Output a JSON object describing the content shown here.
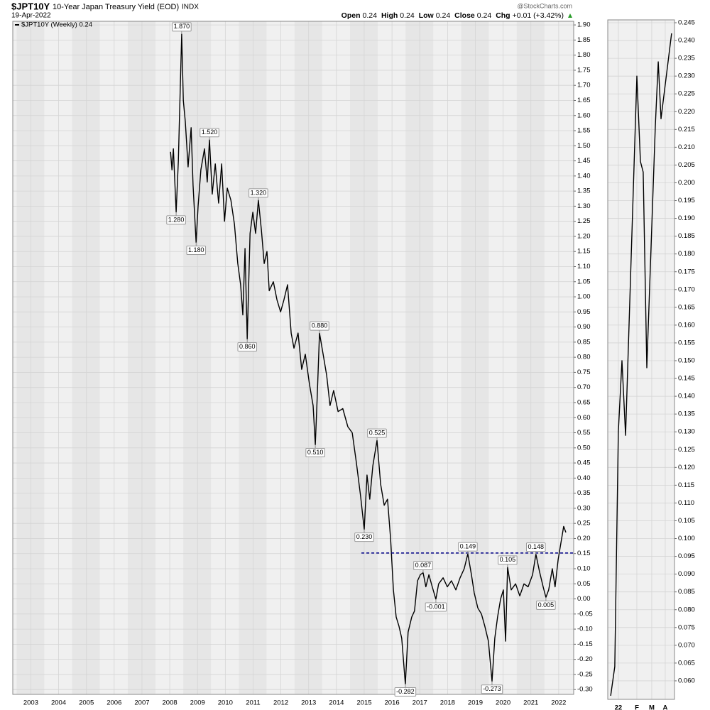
{
  "header": {
    "symbol": "$JPT10Y",
    "name": "10-Year Japan Treasury Yield (EOD)",
    "exchange": "INDX",
    "date": "19-Apr-2022",
    "watermark": "@StockCharts.com",
    "quote": [
      {
        "label": "Open",
        "value": "0.24"
      },
      {
        "label": "High",
        "value": "0.24"
      },
      {
        "label": "Low",
        "value": "0.24"
      },
      {
        "label": "Close",
        "value": "0.24"
      },
      {
        "label": "Chg",
        "value": "+0.01 (+3.42%)"
      }
    ]
  },
  "chart_data": [
    {
      "type": "line",
      "xlim": [
        2002.35,
        2022.54
      ],
      "ylim": [
        -0.316,
        1.912
      ],
      "grid": true,
      "xticks": [
        2003,
        2004,
        2005,
        2006,
        2007,
        2008,
        2009,
        2010,
        2011,
        2012,
        2013,
        2014,
        2015,
        2016,
        2017,
        2018,
        2019,
        2020,
        2021,
        2022
      ],
      "yticks": [
        {
          "value": 1.9,
          "label": "1.90"
        },
        {
          "value": 1.85,
          "label": "1.85"
        },
        {
          "value": 1.8,
          "label": "1.80"
        },
        {
          "value": 1.75,
          "label": "1.75"
        },
        {
          "value": 1.7,
          "label": "1.70"
        },
        {
          "value": 1.65,
          "label": "1.65"
        },
        {
          "value": 1.6,
          "label": "1.60"
        },
        {
          "value": 1.55,
          "label": "1.55"
        },
        {
          "value": 1.5,
          "label": "1.50"
        },
        {
          "value": 1.45,
          "label": "1.45"
        },
        {
          "value": 1.4,
          "label": "1.40"
        },
        {
          "value": 1.35,
          "label": "1.35"
        },
        {
          "value": 1.3,
          "label": "1.30"
        },
        {
          "value": 1.25,
          "label": "1.25"
        },
        {
          "value": 1.2,
          "label": "1.20"
        },
        {
          "value": 1.15,
          "label": "1.15"
        },
        {
          "value": 1.1,
          "label": "1.10"
        },
        {
          "value": 1.05,
          "label": "1.05"
        },
        {
          "value": 1.0,
          "label": "1.00"
        },
        {
          "value": 0.95,
          "label": "0.95"
        },
        {
          "value": 0.9,
          "label": "0.90"
        },
        {
          "value": 0.85,
          "label": "0.85"
        },
        {
          "value": 0.8,
          "label": "0.80"
        },
        {
          "value": 0.75,
          "label": "0.75"
        },
        {
          "value": 0.7,
          "label": "0.70"
        },
        {
          "value": 0.65,
          "label": "0.65"
        },
        {
          "value": 0.6,
          "label": "0.60"
        },
        {
          "value": 0.55,
          "label": "0.55"
        },
        {
          "value": 0.5,
          "label": "0.50"
        },
        {
          "value": 0.45,
          "label": "0.45"
        },
        {
          "value": 0.4,
          "label": "0.40"
        },
        {
          "value": 0.35,
          "label": "0.35"
        },
        {
          "value": 0.3,
          "label": "0.30"
        },
        {
          "value": 0.25,
          "label": "0.25"
        },
        {
          "value": 0.2,
          "label": "0.20"
        },
        {
          "value": 0.15,
          "label": "0.15"
        },
        {
          "value": 0.1,
          "label": "0.10"
        },
        {
          "value": 0.05,
          "label": "0.05"
        },
        {
          "value": 0,
          "label": "0.00"
        },
        {
          "value": -0.05,
          "label": "-0.05"
        },
        {
          "value": -0.1,
          "label": "-0.10"
        },
        {
          "value": -0.15,
          "label": "-0.15"
        },
        {
          "value": -0.2,
          "label": "-0.20"
        },
        {
          "value": -0.25,
          "label": "-0.25"
        },
        {
          "value": -0.3,
          "label": "-0.30"
        }
      ],
      "series": [
        {
          "name": "$JPT10Y (Weekly) 0.24",
          "color": "#000000",
          "x": [
            2008.03,
            2008.08,
            2008.13,
            2008.23,
            2008.31,
            2008.36,
            2008.43,
            2008.49,
            2008.56,
            2008.66,
            2008.77,
            2008.84,
            2008.95,
            2009.02,
            2009.12,
            2009.25,
            2009.35,
            2009.43,
            2009.53,
            2009.64,
            2009.76,
            2009.87,
            2009.97,
            2010.07,
            2010.2,
            2010.33,
            2010.45,
            2010.55,
            2010.63,
            2010.71,
            2010.79,
            2010.89,
            2010.99,
            2011.09,
            2011.19,
            2011.3,
            2011.4,
            2011.5,
            2011.58,
            2011.73,
            2011.86,
            2011.99,
            2012.11,
            2012.24,
            2012.37,
            2012.47,
            2012.62,
            2012.75,
            2012.88,
            2013.03,
            2013.16,
            2013.24,
            2013.31,
            2013.39,
            2013.52,
            2013.65,
            2013.77,
            2013.9,
            2014.06,
            2014.23,
            2014.41,
            2014.57,
            2014.72,
            2014.87,
            2015.0,
            2015.1,
            2015.2,
            2015.31,
            2015.46,
            2015.59,
            2015.72,
            2015.84,
            2015.95,
            2016.05,
            2016.15,
            2016.25,
            2016.35,
            2016.48,
            2016.58,
            2016.71,
            2016.81,
            2016.92,
            2017.02,
            2017.12,
            2017.22,
            2017.33,
            2017.45,
            2017.58,
            2017.68,
            2017.84,
            2017.99,
            2018.14,
            2018.3,
            2018.45,
            2018.6,
            2018.73,
            2018.86,
            2018.96,
            2019.09,
            2019.22,
            2019.34,
            2019.47,
            2019.6,
            2019.7,
            2019.8,
            2019.91,
            2020.01,
            2020.09,
            2020.16,
            2020.29,
            2020.45,
            2020.6,
            2020.75,
            2020.9,
            2021.06,
            2021.18,
            2021.31,
            2021.44,
            2021.54,
            2021.64,
            2021.77,
            2021.87,
            2021.98,
            2022.08,
            2022.18,
            2022.26
          ],
          "values": [
            1.48,
            1.42,
            1.49,
            1.28,
            1.45,
            1.63,
            1.87,
            1.65,
            1.58,
            1.43,
            1.56,
            1.37,
            1.18,
            1.3,
            1.42,
            1.49,
            1.38,
            1.52,
            1.34,
            1.44,
            1.31,
            1.44,
            1.25,
            1.36,
            1.32,
            1.24,
            1.11,
            1.04,
            0.94,
            1.16,
            0.86,
            1.21,
            1.28,
            1.21,
            1.32,
            1.22,
            1.11,
            1.15,
            1.02,
            1.05,
            0.99,
            0.95,
            0.99,
            1.04,
            0.88,
            0.83,
            0.88,
            0.76,
            0.81,
            0.71,
            0.64,
            0.51,
            0.67,
            0.88,
            0.81,
            0.74,
            0.64,
            0.69,
            0.62,
            0.63,
            0.57,
            0.55,
            0.45,
            0.34,
            0.23,
            0.41,
            0.33,
            0.44,
            0.525,
            0.38,
            0.31,
            0.33,
            0.2,
            0.03,
            -0.06,
            -0.09,
            -0.13,
            -0.282,
            -0.11,
            -0.06,
            -0.04,
            0.06,
            0.08,
            0.087,
            0.04,
            0.08,
            0.04,
            -0.001,
            0.05,
            0.07,
            0.04,
            0.06,
            0.03,
            0.07,
            0.1,
            0.149,
            0.08,
            0.02,
            -0.03,
            -0.05,
            -0.09,
            -0.14,
            -0.273,
            -0.13,
            -0.06,
            0.0,
            0.03,
            -0.14,
            0.105,
            0.03,
            0.05,
            0.01,
            0.05,
            0.04,
            0.08,
            0.148,
            0.09,
            0.04,
            0.005,
            0.03,
            0.1,
            0.04,
            0.13,
            0.185,
            0.24,
            0.22
          ]
        }
      ],
      "reference_line": {
        "value": 0.152,
        "x_start": 2014.9,
        "color": "#00008b"
      },
      "annotations": [
        {
          "x": 2008.43,
          "y": 1.87,
          "label": "1.870",
          "position": "above"
        },
        {
          "x": 2008.23,
          "y": 1.28,
          "label": "1.280",
          "position": "below"
        },
        {
          "x": 2008.95,
          "y": 1.18,
          "label": "1.180",
          "position": "below"
        },
        {
          "x": 2009.43,
          "y": 1.52,
          "label": "1.520",
          "position": "above"
        },
        {
          "x": 2011.19,
          "y": 1.32,
          "label": "1.320",
          "position": "above"
        },
        {
          "x": 2010.79,
          "y": 0.86,
          "label": "0.860",
          "position": "below"
        },
        {
          "x": 2013.39,
          "y": 0.88,
          "label": "0.880",
          "position": "above"
        },
        {
          "x": 2013.24,
          "y": 0.51,
          "label": "0.510",
          "position": "below"
        },
        {
          "x": 2015.46,
          "y": 0.525,
          "label": "0.525",
          "position": "above"
        },
        {
          "x": 2015.0,
          "y": 0.23,
          "label": "0.230",
          "position": "below"
        },
        {
          "x": 2016.48,
          "y": -0.282,
          "label": "-0.282",
          "position": "below"
        },
        {
          "x": 2017.12,
          "y": 0.087,
          "label": "0.087",
          "position": "above"
        },
        {
          "x": 2017.58,
          "y": -0.001,
          "label": "-0.001",
          "position": "below"
        },
        {
          "x": 2018.73,
          "y": 0.149,
          "label": "0.149",
          "position": "above"
        },
        {
          "x": 2019.6,
          "y": -0.273,
          "label": "-0.273",
          "position": "below"
        },
        {
          "x": 2020.16,
          "y": 0.105,
          "label": "0.105",
          "position": "above"
        },
        {
          "x": 2021.18,
          "y": 0.148,
          "label": "0.148",
          "position": "above"
        },
        {
          "x": 2021.54,
          "y": 0.005,
          "label": "0.005",
          "position": "below"
        }
      ]
    },
    {
      "type": "line",
      "xlim": [
        -0.4,
        3.5
      ],
      "ylim": [
        0.0548,
        0.2458
      ],
      "grid": true,
      "xticks": [
        {
          "value": 0.22,
          "label": "22"
        },
        {
          "value": 1.3,
          "label": "F"
        },
        {
          "value": 2.17,
          "label": "M"
        },
        {
          "value": 2.96,
          "label": "A"
        }
      ],
      "yticks": [
        {
          "value": 0.245,
          "label": "0.245"
        },
        {
          "value": 0.24,
          "label": "0.240"
        },
        {
          "value": 0.235,
          "label": "0.235"
        },
        {
          "value": 0.23,
          "label": "0.230"
        },
        {
          "value": 0.225,
          "label": "0.225"
        },
        {
          "value": 0.22,
          "label": "0.220"
        },
        {
          "value": 0.215,
          "label": "0.215"
        },
        {
          "value": 0.21,
          "label": "0.210"
        },
        {
          "value": 0.205,
          "label": "0.205"
        },
        {
          "value": 0.2,
          "label": "0.200"
        },
        {
          "value": 0.195,
          "label": "0.195"
        },
        {
          "value": 0.19,
          "label": "0.190"
        },
        {
          "value": 0.185,
          "label": "0.185"
        },
        {
          "value": 0.18,
          "label": "0.180"
        },
        {
          "value": 0.175,
          "label": "0.175"
        },
        {
          "value": 0.17,
          "label": "0.170"
        },
        {
          "value": 0.165,
          "label": "0.165"
        },
        {
          "value": 0.16,
          "label": "0.160"
        },
        {
          "value": 0.155,
          "label": "0.155"
        },
        {
          "value": 0.15,
          "label": "0.150"
        },
        {
          "value": 0.145,
          "label": "0.145"
        },
        {
          "value": 0.14,
          "label": "0.140"
        },
        {
          "value": 0.135,
          "label": "0.135"
        },
        {
          "value": 0.13,
          "label": "0.130"
        },
        {
          "value": 0.125,
          "label": "0.125"
        },
        {
          "value": 0.12,
          "label": "0.120"
        },
        {
          "value": 0.115,
          "label": "0.115"
        },
        {
          "value": 0.11,
          "label": "0.110"
        },
        {
          "value": 0.105,
          "label": "0.105"
        },
        {
          "value": 0.1,
          "label": "0.100"
        },
        {
          "value": 0.095,
          "label": "0.095"
        },
        {
          "value": 0.09,
          "label": "0.090"
        },
        {
          "value": 0.085,
          "label": "0.085"
        },
        {
          "value": 0.08,
          "label": "0.080"
        },
        {
          "value": 0.075,
          "label": "0.075"
        },
        {
          "value": 0.07,
          "label": "0.070"
        },
        {
          "value": 0.065,
          "label": "0.065"
        },
        {
          "value": 0.06,
          "label": "0.060"
        }
      ],
      "series": [
        {
          "color": "#000000",
          "x": [
            -0.23,
            0.01,
            0.22,
            0.43,
            0.64,
            1.3,
            1.51,
            1.67,
            1.88,
            2.38,
            2.55,
            2.71,
            3.33
          ],
          "values": [
            0.0558,
            0.064,
            0.13,
            0.15,
            0.129,
            0.23,
            0.206,
            0.203,
            0.148,
            0.216,
            0.234,
            0.218,
            0.242
          ]
        }
      ]
    }
  ]
}
